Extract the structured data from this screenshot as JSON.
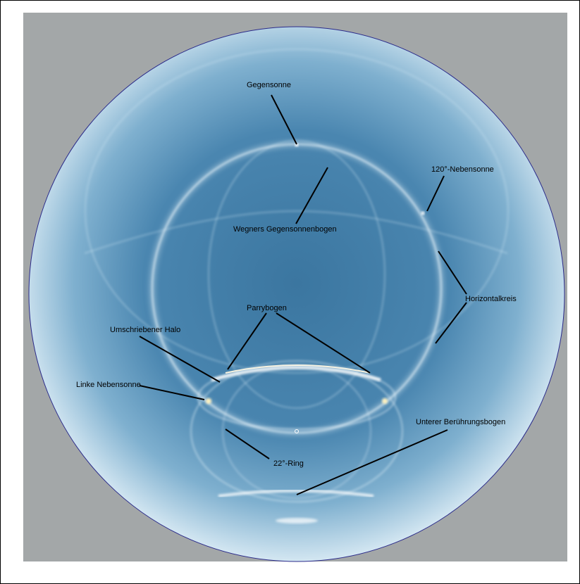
{
  "colors": {
    "sky_center": "#3f7aa3",
    "sky_edge": "#cfe3ef",
    "halo_line": "#e8f4fb",
    "backdrop": "#a3a7a8",
    "leader": "#000000",
    "horizon_outline": "#2a2a8a"
  },
  "labels": {
    "gegensonne": "Gegensonne",
    "wegener": "Wegners Gegensonnenbogen",
    "nebensonne120": "120°-Nebensonne",
    "horizontalkreis": "Horizontalkreis",
    "parrybogen": "Parrybogen",
    "umschriebener": "Umschriebener Halo",
    "linke_nebensonne": "Linke Nebensonne",
    "unterer": "Unterer Berührungsbogen",
    "ring22": "22°-Ring"
  }
}
